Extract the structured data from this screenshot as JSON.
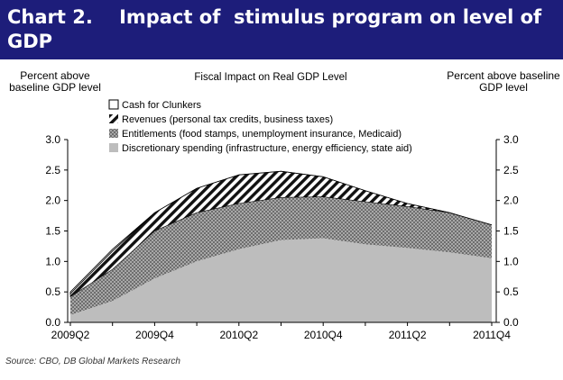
{
  "banner": {
    "title": "Chart 2.    Impact of  stimulus program on level of GDP"
  },
  "chart_data": {
    "type": "area",
    "title": "Fiscal Impact on Real GDP Level",
    "ylabel_left": "Percent above baseline GDP level",
    "ylabel_right": "Percent above baseline GDP level",
    "ylim": [
      0,
      3.0
    ],
    "yticks": [
      "0.0",
      "0.5",
      "1.0",
      "1.5",
      "2.0",
      "2.5",
      "3.0"
    ],
    "xtick_labels": [
      "2009Q2",
      "2009Q4",
      "2010Q2",
      "2010Q4",
      "2011Q2",
      "2011Q4"
    ],
    "x": [
      "2009Q2",
      "2009Q3",
      "2009Q4",
      "2010Q1",
      "2010Q2",
      "2010Q3",
      "2010Q4",
      "2011Q1",
      "2011Q2",
      "2011Q3",
      "2011Q4"
    ],
    "stacking": "cumulative",
    "series": [
      {
        "name": "Discretionary spending (infrastructure, energy efficiency, state aid)",
        "pattern": "solid",
        "color": "#bdbdbd",
        "values": [
          0.12,
          0.35,
          0.72,
          1.0,
          1.2,
          1.35,
          1.38,
          1.28,
          1.22,
          1.15,
          1.05
        ]
      },
      {
        "name": "Entitlements (food stamps, unemployment insurance, Medicaid)",
        "pattern": "dotted",
        "color": "#8a8a8a",
        "values": [
          0.3,
          0.52,
          0.78,
          0.8,
          0.75,
          0.7,
          0.68,
          0.7,
          0.68,
          0.65,
          0.55
        ]
      },
      {
        "name": "Revenues (personal tax credits, business taxes)",
        "pattern": "diagonal-hatch",
        "color": "#000000",
        "values": [
          0.05,
          0.3,
          0.3,
          0.4,
          0.47,
          0.43,
          0.33,
          0.18,
          0.05,
          0.0,
          0.0
        ]
      },
      {
        "name": "Cash for Clunkers",
        "pattern": "white",
        "color": "#ffffff",
        "values": [
          0.03,
          0.03,
          0.0,
          0.0,
          0.0,
          0.0,
          0.0,
          0.0,
          0.0,
          0.0,
          0.0
        ]
      }
    ],
    "legend_position": "top-left"
  },
  "footer": {
    "source": "Source: CBO, DB Global Markets Research"
  }
}
